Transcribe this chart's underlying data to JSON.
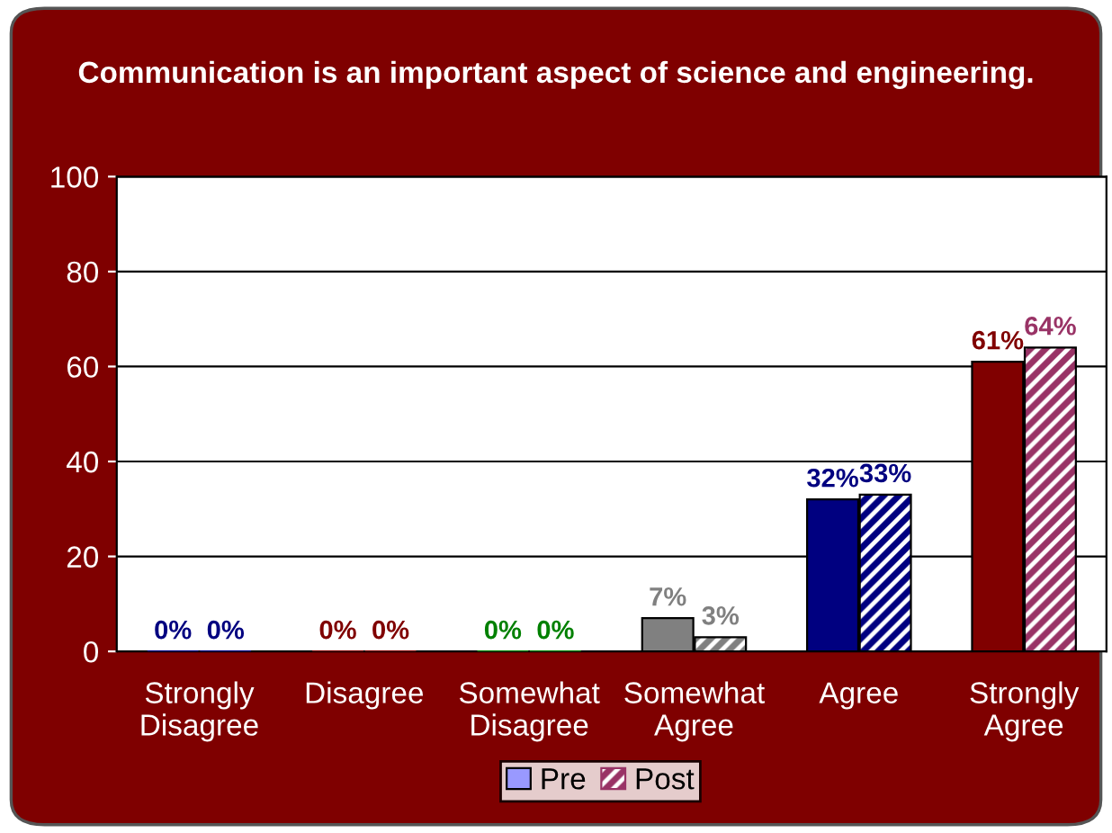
{
  "chart_data": {
    "type": "bar",
    "title": "Communication is an important aspect of science and engineering.",
    "categories": [
      "Strongly\nDisagree",
      "Disagree",
      "Somewhat\nDisagree",
      "Somewhat\nAgree",
      "Agree",
      "Strongly\nAgree"
    ],
    "series": [
      {
        "name": "Pre",
        "color": "#9999ff",
        "values": [
          0,
          0,
          0,
          7,
          32,
          61
        ],
        "colors": [
          "#000080",
          "#800000",
          "#008000",
          "#808080",
          "#000080",
          "#800000"
        ],
        "value_labels": [
          "0%",
          "0%",
          "0%",
          "7%",
          "32%",
          "61%"
        ]
      },
      {
        "name": "Post",
        "color": "#993366",
        "values": [
          0,
          0,
          0,
          3,
          33,
          64
        ],
        "colors": [
          "#000080",
          "#800000",
          "#008000",
          "#808080",
          "#000080",
          "#993366"
        ],
        "value_labels": [
          "0%",
          "0%",
          "0%",
          "3%",
          "33%",
          "64%"
        ]
      }
    ],
    "ylim": [
      0,
      100
    ],
    "yticks": [
      0,
      20,
      40,
      60,
      80,
      100
    ],
    "grid": "y",
    "legend": "bottom"
  }
}
